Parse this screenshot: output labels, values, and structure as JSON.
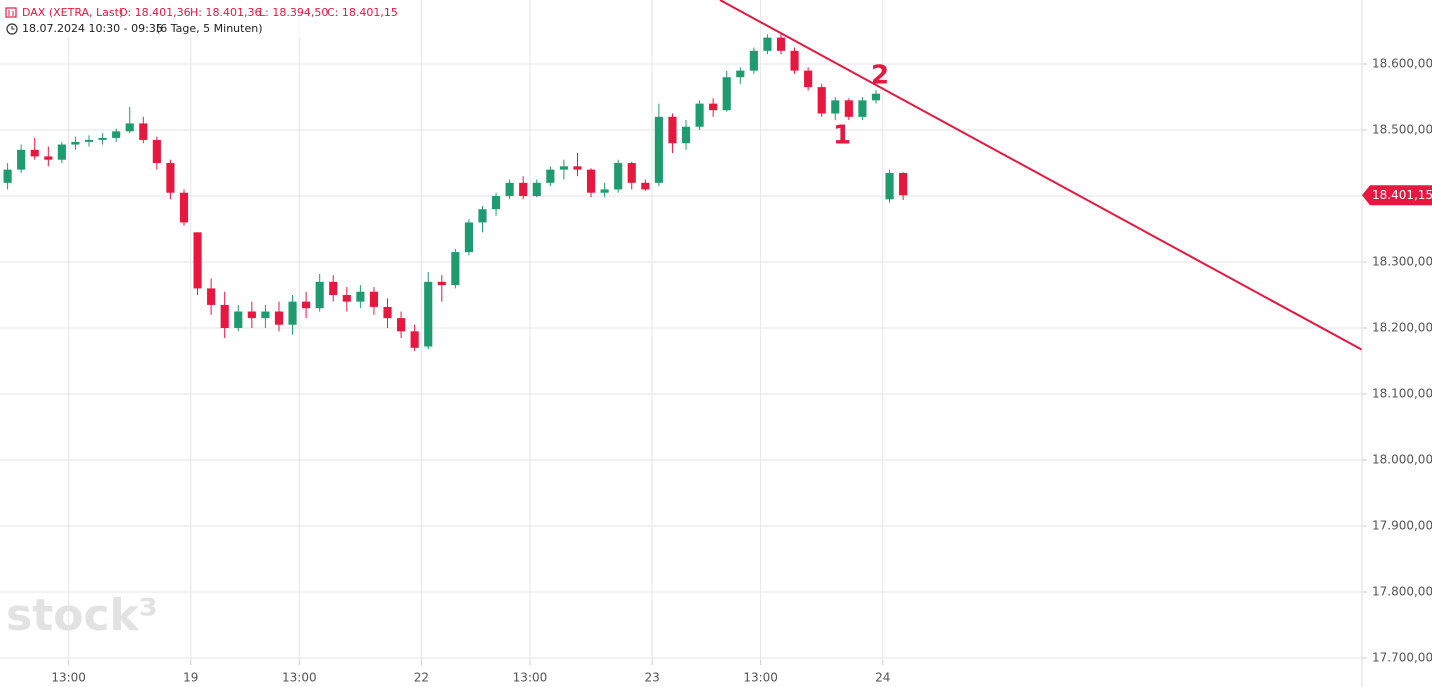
{
  "chart_data": {
    "type": "candlestick",
    "header": {
      "symbol": "DAX (XETRA, Last)",
      "open": "O: 18.401,36",
      "high": "H: 18.401,36",
      "low": "L: 18.394,50",
      "close": "C: 18.401,15",
      "range": "18.07.2024 10:30 - 09:35",
      "period": "(6 Tage, 5 Minuten)"
    },
    "watermark": "stock³",
    "up_color": "#1f9c6f",
    "down_color": "#e8173f",
    "x": [
      1.5,
      2,
      2.5,
      3,
      3.5,
      4,
      4.5,
      5,
      5.5,
      6,
      6.5,
      7,
      7.5,
      8,
      8.5,
      9,
      9.5,
      10,
      10.5,
      11,
      11.5,
      12,
      12.5,
      13,
      13.5,
      14,
      14.5,
      15,
      15.5,
      16,
      16.5,
      17,
      17.5,
      18,
      18.5,
      19,
      19.5,
      20,
      20.5,
      21,
      21.5,
      22,
      22.5,
      23,
      23.5,
      24,
      24.5,
      25,
      25.5,
      26,
      26.5,
      27,
      27.5,
      28,
      28.5,
      29,
      29.5,
      30,
      30.5,
      31,
      31.5,
      32,
      32.5,
      33,
      33.5,
      34,
      34.5
    ],
    "open": [
      18420,
      18440,
      18470,
      18460,
      18455,
      18478,
      18482,
      18485,
      18488,
      18498,
      18510,
      18485,
      18450,
      18405,
      18345,
      18260,
      18235,
      18200,
      18225,
      18215,
      18225,
      18205,
      18240,
      18230,
      18270,
      18250,
      18240,
      18255,
      18232,
      18215,
      18195,
      18172,
      18270,
      18265,
      18315,
      18360,
      18380,
      18400,
      18420,
      18400,
      18420,
      18440,
      18445,
      18440,
      18405,
      18410,
      18450,
      18420,
      18420,
      18520,
      18480,
      18505,
      18540,
      18530,
      18580,
      18590,
      18620,
      18640,
      18620,
      18590,
      18565,
      18525,
      18545,
      18520,
      18545,
      18395,
      18435
    ],
    "high": [
      18450,
      18478,
      18488,
      18475,
      18482,
      18490,
      18492,
      18495,
      18502,
      18535,
      18520,
      18490,
      18455,
      18410,
      18345,
      18275,
      18255,
      18235,
      18240,
      18235,
      18240,
      18250,
      18255,
      18282,
      18280,
      18262,
      18265,
      18262,
      18245,
      18225,
      18205,
      18285,
      18280,
      18320,
      18365,
      18385,
      18405,
      18425,
      18430,
      18425,
      18445,
      18455,
      18465,
      18442,
      18420,
      18455,
      18452,
      18425,
      18540,
      18525,
      18515,
      18545,
      18548,
      18590,
      18595,
      18625,
      18645,
      18648,
      18625,
      18595,
      18570,
      18550,
      18548,
      18550,
      18560,
      18440,
      18436
    ],
    "low": [
      18410,
      18435,
      18455,
      18445,
      18450,
      18470,
      18475,
      18478,
      18482,
      18495,
      18480,
      18440,
      18395,
      18355,
      18250,
      18220,
      18185,
      18195,
      18200,
      18200,
      18195,
      18190,
      18215,
      18225,
      18240,
      18225,
      18230,
      18220,
      18200,
      18185,
      18165,
      18168,
      18240,
      18260,
      18310,
      18345,
      18370,
      18395,
      18395,
      18398,
      18415,
      18425,
      18430,
      18398,
      18398,
      18405,
      18410,
      18408,
      18415,
      18465,
      18470,
      18500,
      18520,
      18528,
      18570,
      18585,
      18615,
      18615,
      18585,
      18560,
      18520,
      18515,
      18515,
      18515,
      18540,
      18390,
      18394
    ],
    "close": [
      18440,
      18470,
      18460,
      18455,
      18478,
      18482,
      18485,
      18488,
      18498,
      18510,
      18485,
      18450,
      18405,
      18360,
      18260,
      18235,
      18200,
      18225,
      18215,
      18225,
      18205,
      18240,
      18230,
      18270,
      18250,
      18240,
      18255,
      18232,
      18215,
      18195,
      18170,
      18270,
      18265,
      18315,
      18360,
      18380,
      18400,
      18420,
      18400,
      18420,
      18440,
      18445,
      18440,
      18405,
      18410,
      18450,
      18420,
      18410,
      18520,
      18480,
      18505,
      18540,
      18530,
      18580,
      18590,
      18620,
      18640,
      18620,
      18590,
      18565,
      18525,
      18545,
      18520,
      18545,
      18555,
      18435,
      18401.15
    ],
    "xlim": [
      1.47,
      51.66
    ],
    "xticks": [
      {
        "value": 4,
        "label": "13:00"
      },
      {
        "value": 8.5,
        "label": "19"
      },
      {
        "value": 12.5,
        "label": "13:00"
      },
      {
        "value": 17,
        "label": "22"
      },
      {
        "value": 21,
        "label": "13:00"
      },
      {
        "value": 25.5,
        "label": "23"
      },
      {
        "value": 29.5,
        "label": "13:00"
      },
      {
        "value": 34,
        "label": "24"
      }
    ],
    "ylim": [
      17697,
      18697
    ],
    "yticks": [
      {
        "value": 17700,
        "label": "17.700,00"
      },
      {
        "value": 17800,
        "label": "17.800,00"
      },
      {
        "value": 17900,
        "label": "17.900,00"
      },
      {
        "value": 18000,
        "label": "18.000,00"
      },
      {
        "value": 18100,
        "label": "18.100,00"
      },
      {
        "value": 18200,
        "label": "18.200,00"
      },
      {
        "value": 18300,
        "label": "18.300,00"
      },
      {
        "value": 18400,
        "label": "18.400,00"
      },
      {
        "value": 18500,
        "label": "18.500,00"
      },
      {
        "value": 18600,
        "label": "18.600,00"
      }
    ],
    "last_price": {
      "value": 18401.15,
      "label": "18.401,15"
    },
    "trendline": {
      "x": [
        28.0,
        51.66
      ],
      "y": [
        18697,
        18167
      ],
      "color": "#e8173f"
    },
    "annotations": [
      {
        "text": "1",
        "x": 32.5,
        "y": 18491
      },
      {
        "text": "2",
        "x": 33.9,
        "y": 18582
      }
    ],
    "grid": true
  }
}
